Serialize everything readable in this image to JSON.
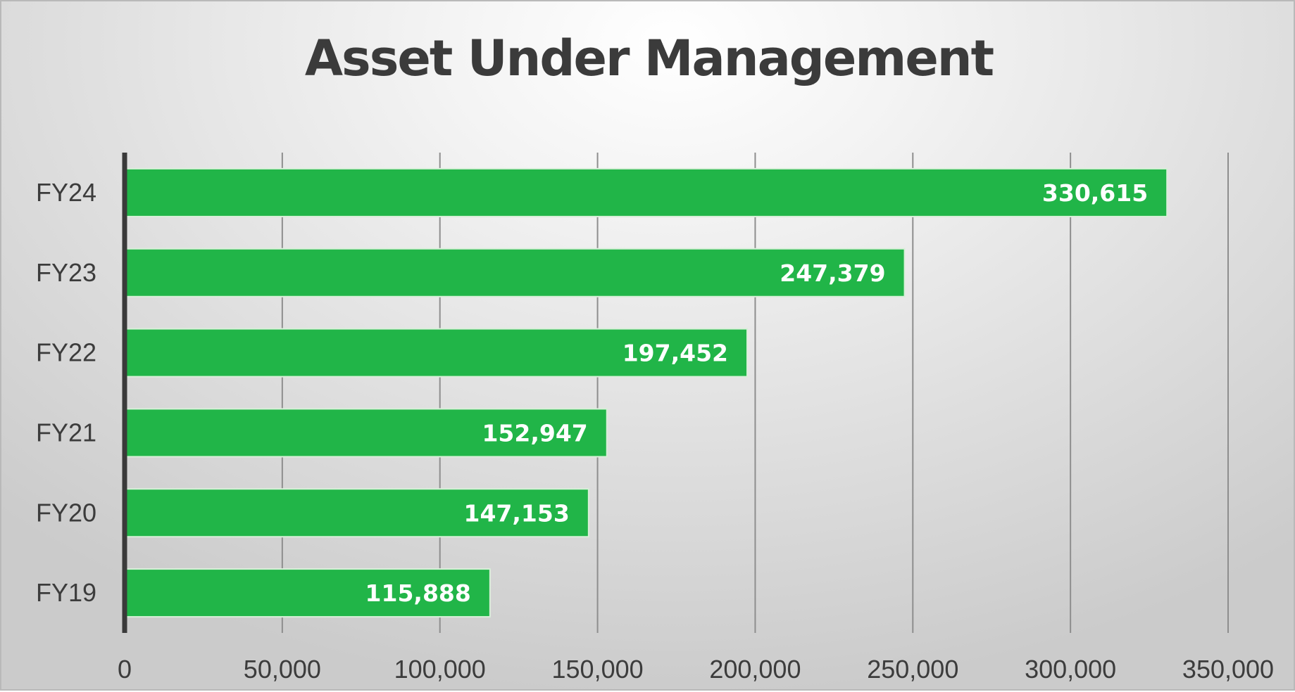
{
  "chart_data": {
    "type": "bar",
    "orientation": "horizontal",
    "title": "Asset Under Management",
    "categories": [
      "FY24",
      "FY23",
      "FY22",
      "FY21",
      "FY20",
      "FY19"
    ],
    "values": [
      330615,
      247379,
      197452,
      152947,
      147153,
      115888
    ],
    "data_labels": [
      "330,615",
      "247,379",
      "197,452",
      "152,947",
      "147,153",
      "115,888"
    ],
    "xlim": [
      0,
      350000
    ],
    "x_ticks": [
      0,
      50000,
      100000,
      150000,
      200000,
      250000,
      300000,
      350000
    ],
    "x_tick_labels": [
      "0",
      "50,000",
      "100,000",
      "150,000",
      "200,000",
      "250,000",
      "300,000",
      "350,000"
    ],
    "grid": "vertical",
    "legend": "none",
    "colors": {
      "bar": "#21b548",
      "data_label": "#ffffff",
      "axis": "#3a3a3a",
      "grid": "#8e8e8e"
    }
  }
}
